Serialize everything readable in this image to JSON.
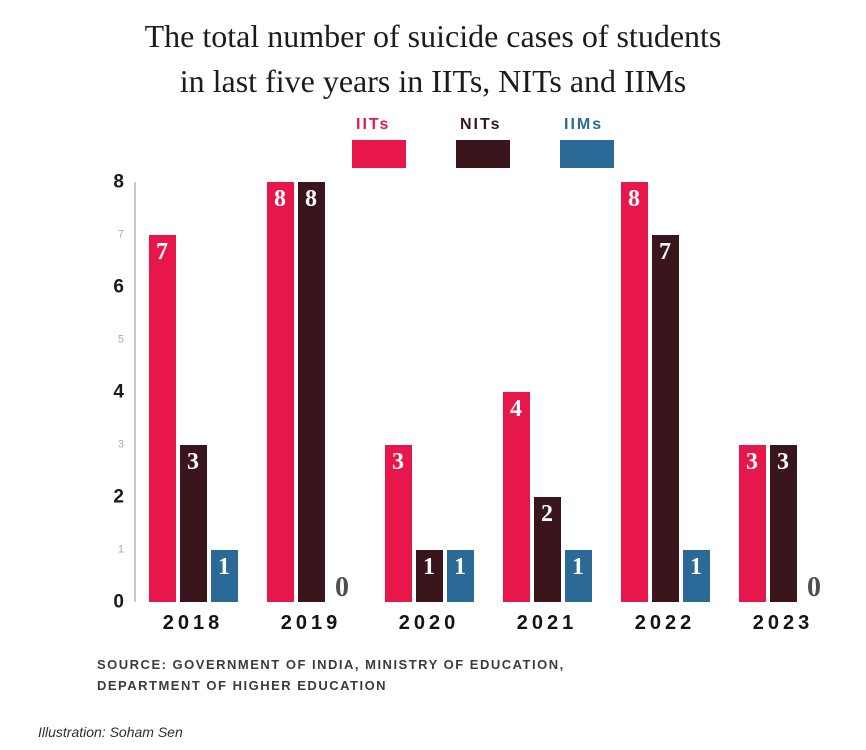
{
  "title": {
    "line1": "The total number of suicide cases of students",
    "line2": "in last five years in IITs, NITs and IIMs"
  },
  "legend": [
    {
      "label": "IITs",
      "color": "#e8174b"
    },
    {
      "label": "NITs",
      "color": "#3b151c"
    },
    {
      "label": "IIMs",
      "color": "#2b6a97"
    }
  ],
  "source": {
    "line1": "SOURCE: GOVERNMENT OF INDIA, MINISTRY OF EDUCATION,",
    "line2": "DEPARTMENT OF HIGHER EDUCATION"
  },
  "credit": "Illustration: Soham Sen",
  "chart_data": {
    "type": "bar",
    "title": "The total number of suicide cases of students in last five years in IITs, NITs and IIMs",
    "categories": [
      "2018",
      "2019",
      "2020",
      "2021",
      "2022",
      "2023"
    ],
    "series": [
      {
        "name": "IITs",
        "color": "#e8174b",
        "values": [
          7,
          8,
          3,
          4,
          8,
          3
        ]
      },
      {
        "name": "NITs",
        "color": "#3b151c",
        "values": [
          3,
          8,
          1,
          2,
          7,
          3
        ]
      },
      {
        "name": "IIMs",
        "color": "#2b6a97",
        "values": [
          1,
          0,
          1,
          1,
          1,
          0
        ]
      }
    ],
    "ylim": [
      0,
      8
    ],
    "yticks": [
      0,
      1,
      2,
      3,
      4,
      5,
      6,
      7,
      8
    ],
    "grid": false,
    "legend_position": "top",
    "value_labels": true,
    "xlabel": "",
    "ylabel": ""
  }
}
